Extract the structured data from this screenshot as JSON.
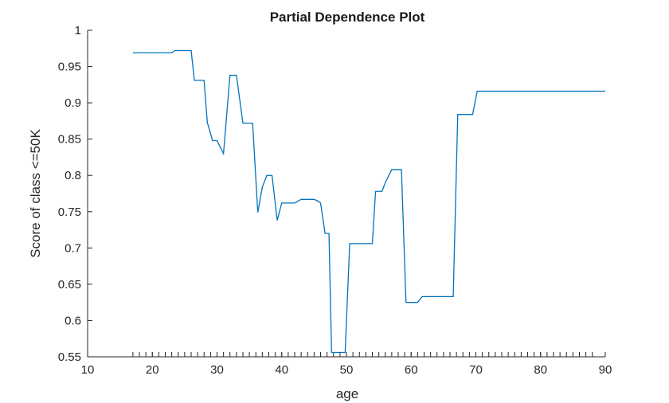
{
  "chart_data": {
    "type": "line",
    "title": "Partial Dependence Plot",
    "xlabel": "age",
    "ylabel": "Score of class <=50K",
    "xlim": [
      10,
      90
    ],
    "ylim": [
      0.55,
      1
    ],
    "xticks": [
      "10",
      "20",
      "30",
      "40",
      "50",
      "60",
      "70",
      "80",
      "90"
    ],
    "yticks": [
      "0.55",
      "0.6",
      "0.65",
      "0.7",
      "0.75",
      "0.8",
      "0.85",
      "0.9",
      "0.95",
      "1"
    ],
    "grid": false,
    "line_color": "#0072BD",
    "series": [
      {
        "x": [
          17,
          23,
          23.5,
          26,
          26.5,
          28,
          28.5,
          29.3,
          30,
          31,
          32,
          33,
          34,
          35.5,
          36.3,
          37,
          37.7,
          38.5,
          39.3,
          40,
          42,
          43,
          44,
          45,
          45.5,
          46,
          46.7,
          47.3,
          47.7,
          49,
          49.8,
          50.5,
          52,
          54,
          54.5,
          55.5,
          56,
          57,
          58.5,
          59.2,
          60,
          61,
          61.7,
          62.5,
          66.5,
          67.2,
          68,
          69.5,
          70.2,
          72,
          90
        ],
        "y": [
          0.969,
          0.969,
          0.972,
          0.972,
          0.931,
          0.931,
          0.873,
          0.848,
          0.848,
          0.83,
          0.938,
          0.938,
          0.872,
          0.872,
          0.749,
          0.784,
          0.8,
          0.8,
          0.738,
          0.762,
          0.762,
          0.767,
          0.767,
          0.767,
          0.765,
          0.762,
          0.72,
          0.72,
          0.556,
          0.556,
          0.556,
          0.706,
          0.706,
          0.706,
          0.778,
          0.778,
          0.79,
          0.808,
          0.808,
          0.625,
          0.625,
          0.625,
          0.633,
          0.633,
          0.633,
          0.884,
          0.884,
          0.884,
          0.916,
          0.916,
          0.916
        ]
      }
    ],
    "rug_x": [
      17,
      18,
      19,
      20,
      21,
      22,
      23,
      24,
      25,
      26,
      27,
      28,
      29,
      30,
      31,
      32,
      33,
      34,
      35,
      36,
      37,
      38,
      39,
      40,
      41,
      42,
      43,
      44,
      45,
      46,
      47,
      48,
      49,
      50,
      51,
      52,
      53,
      54,
      55,
      56,
      57,
      58,
      59,
      60,
      61,
      62,
      63,
      64,
      65,
      66,
      67,
      68,
      69,
      70,
      71,
      72,
      73,
      74,
      75,
      76,
      77,
      78,
      79,
      80,
      81,
      82,
      83,
      84,
      85,
      86,
      87,
      88,
      90
    ]
  }
}
